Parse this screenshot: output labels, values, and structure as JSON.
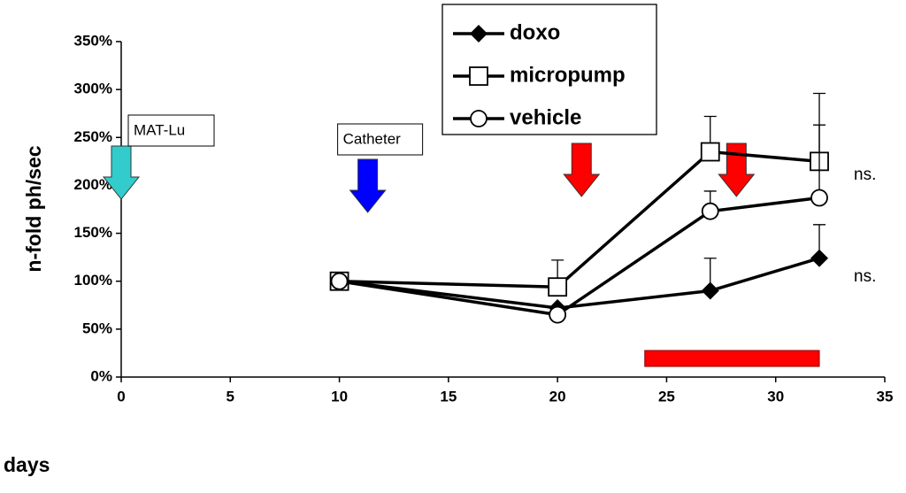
{
  "chart_data": {
    "type": "line",
    "y_label": "n-fold ph/sec",
    "x_label": "days",
    "x": [
      10,
      20,
      27,
      32
    ],
    "series": [
      {
        "name": "doxo",
        "color": "#000000",
        "marker": "diamond",
        "values": [
          100,
          72,
          90,
          124
        ],
        "errors": [
          null,
          null,
          34,
          35
        ]
      },
      {
        "name": "micropump",
        "color": "#000000",
        "marker": "square",
        "values": [
          100,
          94,
          235,
          225
        ],
        "errors": [
          null,
          28,
          37,
          71
        ]
      },
      {
        "name": "vehicle",
        "color": "#000000",
        "marker": "circle",
        "values": [
          100,
          65,
          173,
          187
        ],
        "errors": [
          null,
          null,
          21,
          76
        ]
      }
    ],
    "xlim": [
      0,
      35
    ],
    "xticks": [
      0,
      5,
      10,
      15,
      20,
      25,
      30,
      35
    ],
    "ylim": [
      0,
      350
    ],
    "yticks": [
      {
        "value": 0,
        "label": "0%"
      },
      {
        "value": 50,
        "label": "50%"
      },
      {
        "value": 100,
        "label": "100%"
      },
      {
        "value": 150,
        "label": "150%"
      },
      {
        "value": 200,
        "label": "200%"
      },
      {
        "value": 250,
        "label": "250%"
      },
      {
        "value": 300,
        "label": "300%"
      },
      {
        "value": 350,
        "label": "350%"
      }
    ],
    "arrows": [
      {
        "label": "MAT-Lu",
        "x": 0,
        "color": "#33cccc"
      },
      {
        "label": "Catheter",
        "x": 11.3,
        "color": "#0000ff"
      },
      {
        "x": 21.1,
        "color": "#ff0000"
      },
      {
        "x": 28.2,
        "color": "#ff0000"
      }
    ],
    "highlight_span": {
      "x": [
        24,
        32
      ],
      "color": "#ff0000"
    },
    "side_labels": [
      "ns.",
      "ns."
    ]
  }
}
